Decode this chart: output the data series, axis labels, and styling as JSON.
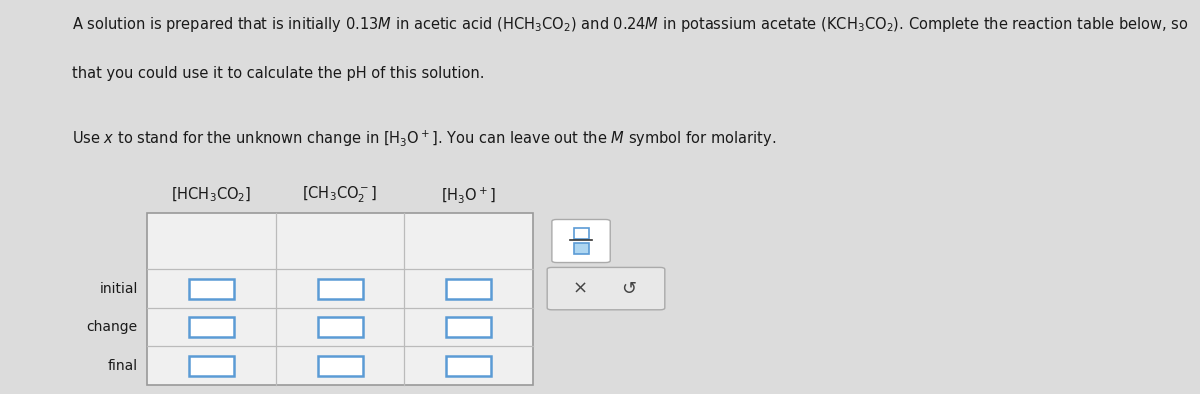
{
  "bg_color": "#dcdcdc",
  "text_color": "#1a1a1a",
  "input_box_color": "#5b9bd5",
  "input_box_fill": "#ffffff",
  "table_border_color": "#999999",
  "table_grid_color": "#bbbbbb",
  "cell_bg": "#f2f2f2",
  "panel_bg": "#e0e0e0",
  "panel_border": "#aaaaaa",
  "row_labels": [
    "initial",
    "change",
    "final"
  ],
  "col_header_texts": [
    "[HCH\\u2083CO\\u2082]",
    "[CH\\u2083CO\\u2082\\u207b]",
    "[H\\u2083O\\u207a]"
  ],
  "font_size_body": 10.5,
  "font_size_header": 10.5,
  "font_size_row_label": 10.0
}
